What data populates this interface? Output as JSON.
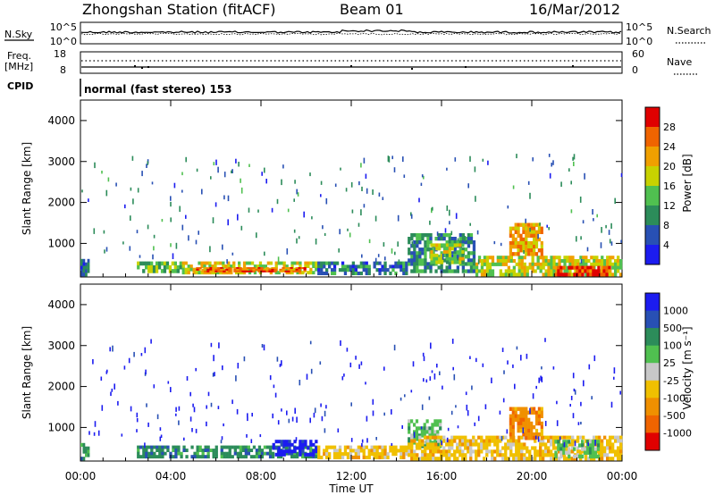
{
  "header": {
    "station": "Zhongshan Station (fitACF)",
    "beam": "Beam 01",
    "date": "16/Mar/2012"
  },
  "noise_panel": {
    "left_label": "N.Sky",
    "left_ticks": [
      "10^5",
      "10^0"
    ],
    "right_ticks": [
      "10^5",
      "10^0"
    ],
    "right_label": "N.Search"
  },
  "freq_panel": {
    "left_label_1": "Freq.",
    "left_label_2": "[MHz]",
    "left_ticks": [
      "18",
      "8"
    ],
    "right_ticks": [
      "60",
      "0"
    ],
    "right_label": "Nave"
  },
  "cpid": {
    "label": "CPID",
    "mode": "normal (fast stereo) 153"
  },
  "x_axis": {
    "label": "Time UT",
    "ticks": [
      "00:00",
      "04:00",
      "08:00",
      "12:00",
      "16:00",
      "20:00",
      "00:00"
    ]
  },
  "colors": {
    "power": [
      "#1c1cf0",
      "#2850b4",
      "#2c8c5a",
      "#50c050",
      "#c8d200",
      "#f0a000",
      "#f06400",
      "#e00000"
    ],
    "velocity": [
      "#1c1cf0",
      "#2850b4",
      "#2c8c5a",
      "#50c050",
      "#c8c8c8",
      "#f0c000",
      "#f09000",
      "#f06400",
      "#e00000"
    ]
  },
  "chart_data": [
    {
      "type": "heatmap",
      "panel": "power",
      "ylabel": "Slant Range [km]",
      "yticks": [
        "4000",
        "3000",
        "2000",
        "1000"
      ],
      "ylim": [
        180,
        4500
      ],
      "xlabel": "Time UT",
      "xlim_hours": [
        0,
        24
      ],
      "colorbar": {
        "label": "Power [dB]",
        "ticks": [
          "28",
          "24",
          "20",
          "16",
          "12",
          "8",
          "4"
        ],
        "range": [
          0,
          32
        ]
      },
      "regions": [
        {
          "t0": 0.0,
          "t1": 0.4,
          "r0": 200,
          "r1": 620,
          "value": 6
        },
        {
          "t0": 2.5,
          "t1": 4.5,
          "r0": 280,
          "r1": 560,
          "value": 14
        },
        {
          "t0": 4.5,
          "t1": 10.5,
          "r0": 250,
          "r1": 560,
          "value": 18
        },
        {
          "t0": 5.0,
          "t1": 10.0,
          "r0": 300,
          "r1": 420,
          "value": 26
        },
        {
          "t0": 10.5,
          "t1": 14.5,
          "r0": 230,
          "r1": 560,
          "value": 8
        },
        {
          "t0": 14.5,
          "t1": 17.5,
          "r0": 280,
          "r1": 1250,
          "value": 10
        },
        {
          "t0": 15.5,
          "t1": 17.0,
          "r0": 500,
          "r1": 1000,
          "value": 16
        },
        {
          "t0": 17.5,
          "t1": 24.0,
          "r0": 200,
          "r1": 700,
          "value": 18
        },
        {
          "t0": 19.0,
          "t1": 20.5,
          "r0": 700,
          "r1": 1500,
          "value": 22
        },
        {
          "t0": 21.0,
          "t1": 23.5,
          "r0": 200,
          "r1": 450,
          "value": 28
        }
      ]
    },
    {
      "type": "heatmap",
      "panel": "velocity",
      "ylabel": "Slant Range [km]",
      "yticks": [
        "4000",
        "3000",
        "2000",
        "1000"
      ],
      "ylim": [
        180,
        4500
      ],
      "xlabel": "Time UT",
      "xlim_hours": [
        0,
        24
      ],
      "colorbar": {
        "label": "Velocity [m s⁻¹]",
        "ticks": [
          "1000",
          "500",
          "100",
          "25",
          "-25",
          "-100",
          "-500",
          "-1000"
        ]
      },
      "regions": [
        {
          "t0": 0.0,
          "t1": 0.4,
          "r0": 200,
          "r1": 620,
          "value": "100"
        },
        {
          "t0": 2.5,
          "t1": 10.5,
          "r0": 250,
          "r1": 560,
          "value": "100"
        },
        {
          "t0": 8.5,
          "t1": 10.5,
          "r0": 300,
          "r1": 700,
          "value": "1000"
        },
        {
          "t0": 10.5,
          "t1": 14.5,
          "r0": 230,
          "r1": 560,
          "value": "-100"
        },
        {
          "t0": 14.5,
          "t1": 16.0,
          "r0": 500,
          "r1": 1200,
          "value": "25"
        },
        {
          "t0": 14.5,
          "t1": 24.0,
          "r0": 200,
          "r1": 800,
          "value": "-100"
        },
        {
          "t0": 19.0,
          "t1": 20.5,
          "r0": 700,
          "r1": 1500,
          "value": "-500"
        },
        {
          "t0": 21.0,
          "t1": 23.0,
          "r0": 250,
          "r1": 700,
          "value": "25"
        }
      ]
    }
  ]
}
